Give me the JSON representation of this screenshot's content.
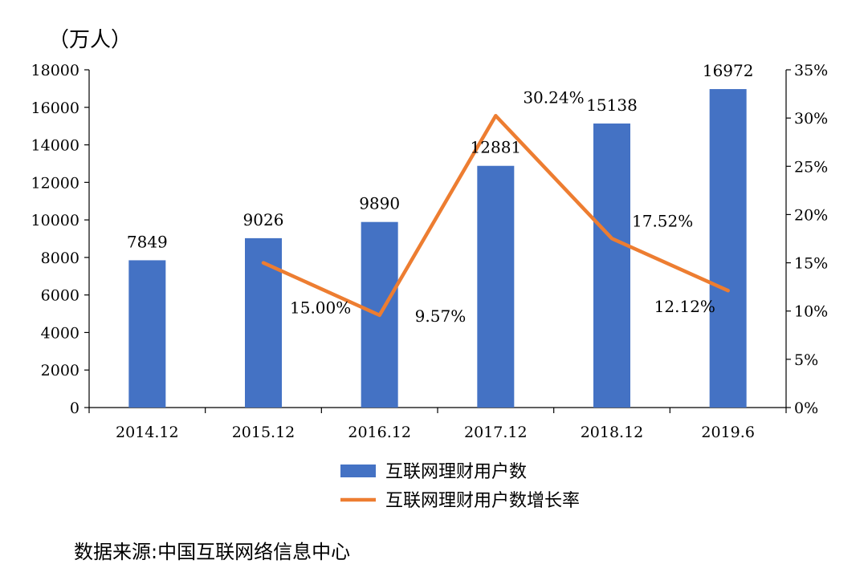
{
  "chart_data": {
    "type": "bar",
    "unit_label": "（万人）",
    "categories": [
      "2014.12",
      "2015.12",
      "2016.12",
      "2017.12",
      "2018.12",
      "2019.6"
    ],
    "series": [
      {
        "name": "互联网理财用户数",
        "type": "bar",
        "axis": "left",
        "color": "#4472C4",
        "values": [
          7849,
          9026,
          9890,
          12881,
          15138,
          16972
        ],
        "labels": [
          "7849",
          "9026",
          "9890",
          "12881",
          "15138",
          "16972"
        ]
      },
      {
        "name": "互联网理财用户数增长率",
        "type": "line",
        "axis": "right",
        "color": "#ED7D31",
        "values": [
          null,
          15.0,
          9.57,
          30.24,
          17.52,
          12.12
        ],
        "labels": [
          null,
          "15.00%",
          "9.57%",
          "30.24%",
          "17.52%",
          "12.12%"
        ]
      }
    ],
    "y_left": {
      "min": 0,
      "max": 18000,
      "ticks": [
        "0",
        "2000",
        "4000",
        "6000",
        "8000",
        "10000",
        "12000",
        "14000",
        "16000",
        "18000"
      ]
    },
    "y_right": {
      "min": 0,
      "max": 35,
      "ticks": [
        "0%",
        "5%",
        "10%",
        "15%",
        "20%",
        "25%",
        "30%",
        "35%"
      ]
    },
    "grid": false,
    "legend": "bottom"
  },
  "source": "数据来源:中国互联网络信息中心"
}
